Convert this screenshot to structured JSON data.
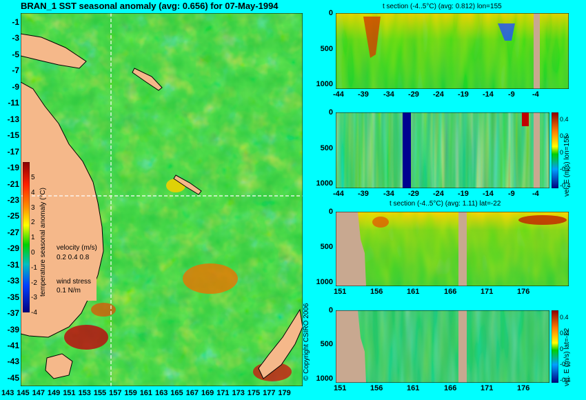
{
  "map": {
    "title": "BRAN_1  SST seasonal anomaly (avg: 0.656) for 07-May-1994",
    "lat_ticks": [
      "-1",
      "-3",
      "-5",
      "-7",
      "-9",
      "-11",
      "-13",
      "-15",
      "-17",
      "-19",
      "-21",
      "-23",
      "-25",
      "-27",
      "-29",
      "-31",
      "-33",
      "-35",
      "-37",
      "-39",
      "-41",
      "-43",
      "-45"
    ],
    "lon_ticks": [
      "143",
      "145",
      "147",
      "149",
      "151",
      "153",
      "155",
      "157",
      "159",
      "161",
      "163",
      "165",
      "167",
      "169",
      "171",
      "173",
      "175",
      "177",
      "179"
    ],
    "colorbar_ticks": [
      "5",
      "4",
      "3",
      "2",
      "1",
      "0",
      "-1",
      "-2",
      "-3",
      "-4"
    ],
    "colorbar_label": "temperature seasonal anomaly (°C)",
    "velocity_label": "velocity (m/s)",
    "velocity_values": "0.2 0.4 0.8",
    "wind_label": "wind stress",
    "wind_value": "0.1 N/m",
    "copyright": "© Copyright CSIRO 2006"
  },
  "sections": [
    {
      "title": "t section (-4..5°C) (avg: 0.812) lon=155",
      "x_ticks": [
        "-44",
        "-39",
        "-34",
        "-29",
        "-24",
        "-19",
        "-14",
        "-9",
        "-4"
      ],
      "y_ticks": [
        "0",
        "500",
        "1000"
      ]
    },
    {
      "title": "",
      "x_ticks": [
        "-44",
        "-39",
        "-34",
        "-29",
        "-24",
        "-19",
        "-14",
        "-9",
        "-4"
      ],
      "y_ticks": [
        "0",
        "500",
        "1000"
      ],
      "colorbar_ticks": [
        "0.4",
        "0.2",
        "0",
        "-0.2",
        "-0.4"
      ],
      "colorbar_label": "vel. E (m/s) lon=155"
    },
    {
      "title": "t section (-4..5°C) (avg: 1.11) lat=-22",
      "x_ticks": [
        "151",
        "156",
        "161",
        "166",
        "171",
        "176"
      ],
      "y_ticks": [
        "0",
        "500",
        "1000"
      ]
    },
    {
      "title": "",
      "x_ticks": [
        "151",
        "156",
        "161",
        "166",
        "171",
        "176"
      ],
      "y_ticks": [
        "0",
        "500",
        "1000"
      ],
      "colorbar_ticks": [
        "0.4",
        "0.2",
        "0",
        "-0.2",
        "-0.4"
      ],
      "colorbar_label": "vel. E (m/s) lat=-22"
    }
  ],
  "chart_data": [
    {
      "type": "heatmap",
      "title": "BRAN_1  SST seasonal anomaly (avg: 0.656) for 07-May-1994",
      "xlim": [
        143,
        180
      ],
      "ylim": [
        -45,
        0
      ],
      "clim": [
        -4,
        5
      ],
      "units": "°C"
    },
    {
      "type": "heatmap",
      "title": "t section (-4..5°C) (avg: 0.812) lon=155",
      "xlim": [
        -45,
        -1
      ],
      "ylim": [
        1050,
        0
      ],
      "clim": [
        -4,
        5
      ]
    },
    {
      "type": "heatmap",
      "title": "",
      "xlim": [
        -45,
        -1
      ],
      "ylim": [
        1050,
        0
      ],
      "clim": [
        -0.4,
        0.4
      ],
      "units": "m/s"
    },
    {
      "type": "heatmap",
      "title": "t section (-4..5°C) (avg: 1.11) lat=-22",
      "xlim": [
        150,
        180
      ],
      "ylim": [
        1050,
        0
      ],
      "clim": [
        -4,
        5
      ]
    },
    {
      "type": "heatmap",
      "title": "",
      "xlim": [
        150,
        180
      ],
      "ylim": [
        1050,
        0
      ],
      "clim": [
        -0.4,
        0.4
      ],
      "units": "m/s"
    }
  ]
}
